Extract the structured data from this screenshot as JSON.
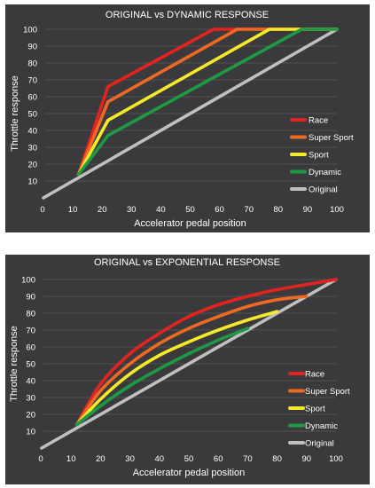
{
  "chart_data": [
    {
      "type": "line",
      "title": "ORIGINAL vs DYNAMIC RESPONSE",
      "xlabel": "Accelerator pedal position",
      "ylabel": "Throttle response",
      "xlim": [
        0,
        100
      ],
      "ylim": [
        0,
        100
      ],
      "x_ticks": [
        "0",
        "10",
        "20",
        "30",
        "40",
        "50",
        "60",
        "70",
        "80",
        "90",
        "100"
      ],
      "y_ticks": [
        "10",
        "20",
        "30",
        "40",
        "50",
        "60",
        "70",
        "80",
        "90",
        "100"
      ],
      "grid": "horizontal",
      "legend_position": "right",
      "series": [
        {
          "name": "Race",
          "color": "#e3231f",
          "points": [
            [
              12,
              14
            ],
            [
              22,
              66
            ],
            [
              58,
              100
            ],
            [
              100,
              100
            ]
          ]
        },
        {
          "name": "Super Sport",
          "color": "#ee6a24",
          "points": [
            [
              12,
              14
            ],
            [
              22,
              57
            ],
            [
              66,
              100
            ],
            [
              100,
              100
            ]
          ]
        },
        {
          "name": "Sport",
          "color": "#f4ea2a",
          "points": [
            [
              12,
              14
            ],
            [
              22,
              46
            ],
            [
              77,
              100
            ],
            [
              100,
              100
            ]
          ]
        },
        {
          "name": "Dynamic",
          "color": "#1e9a45",
          "points": [
            [
              12,
              14
            ],
            [
              22,
              37
            ],
            [
              88,
              100
            ],
            [
              100,
              100
            ]
          ]
        },
        {
          "name": "Original",
          "color": "#c0c0c0",
          "points": [
            [
              0,
              0
            ],
            [
              100,
              100
            ]
          ]
        }
      ]
    },
    {
      "type": "line",
      "title": "ORIGINAL vs EXPONENTIAL RESPONSE",
      "xlabel": "Accelerator pedal position",
      "ylabel": "Throttle response",
      "xlim": [
        0,
        100
      ],
      "ylim": [
        0,
        100
      ],
      "x_ticks": [
        "0",
        "10",
        "20",
        "30",
        "40",
        "50",
        "60",
        "70",
        "80",
        "90",
        "100"
      ],
      "y_ticks": [
        "10",
        "20",
        "30",
        "40",
        "50",
        "60",
        "70",
        "80",
        "90",
        "100"
      ],
      "grid": "horizontal",
      "legend_position": "right",
      "series": [
        {
          "name": "Race",
          "color": "#e3231f",
          "points": [
            [
              12,
              14
            ],
            [
              20,
              38
            ],
            [
              30,
              56
            ],
            [
              40,
              68
            ],
            [
              50,
              78
            ],
            [
              60,
              85
            ],
            [
              70,
              90
            ],
            [
              80,
              94
            ],
            [
              90,
              97
            ],
            [
              100,
              100
            ]
          ]
        },
        {
          "name": "Super Sport",
          "color": "#ee6a24",
          "points": [
            [
              12,
              14
            ],
            [
              20,
              34
            ],
            [
              30,
              50
            ],
            [
              40,
              62
            ],
            [
              50,
              71
            ],
            [
              60,
              78
            ],
            [
              70,
              84
            ],
            [
              80,
              88
            ],
            [
              90,
              90
            ]
          ]
        },
        {
          "name": "Sport",
          "color": "#f4ea2a",
          "points": [
            [
              12,
              14
            ],
            [
              20,
              29
            ],
            [
              30,
              44
            ],
            [
              40,
              55
            ],
            [
              50,
              63
            ],
            [
              60,
              70
            ],
            [
              70,
              76
            ],
            [
              80,
              81
            ]
          ]
        },
        {
          "name": "Dynamic",
          "color": "#1e9a45",
          "points": [
            [
              12,
              14
            ],
            [
              20,
              25
            ],
            [
              30,
              37
            ],
            [
              40,
              47
            ],
            [
              50,
              56
            ],
            [
              60,
              64
            ],
            [
              70,
              71
            ]
          ]
        },
        {
          "name": "Original",
          "color": "#c0c0c0",
          "points": [
            [
              0,
              0
            ],
            [
              100,
              100
            ]
          ]
        }
      ]
    }
  ]
}
